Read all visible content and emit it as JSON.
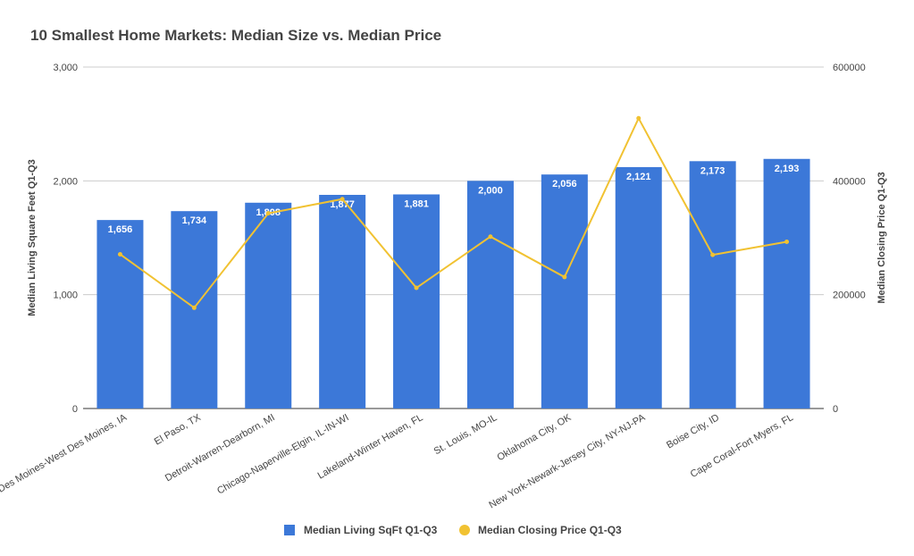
{
  "chart_data": {
    "type": "bar",
    "title": "10 Smallest Home Markets: Median Size vs. Median Price",
    "categories": [
      "Des Moines-West Des Moines, IA",
      "El Paso, TX",
      "Detroit-Warren-Dearborn, MI",
      "Chicago-Naperville-Elgin, IL-IN-WI",
      "Lakeland-Winter Haven, FL",
      "St. Louis, MO-IL",
      "Oklahoma City, OK",
      "New York-Newark-Jersey City, NY-NJ-PA",
      "Boise City, ID",
      "Cape Coral-Fort Myers, FL"
    ],
    "series": [
      {
        "name": "Median Living SqFt Q1-Q3",
        "type": "bar",
        "axis": "left",
        "color": "#3c78d8",
        "values": [
          1656,
          1734,
          1808,
          1877,
          1881,
          2000,
          2056,
          2121,
          2173,
          2193
        ],
        "labels": [
          "1,656",
          "1,734",
          "1,808",
          "1,877",
          "1,881",
          "2,000",
          "2,056",
          "2,121",
          "2,173",
          "2,193"
        ]
      },
      {
        "name": "Median Closing Price Q1-Q3",
        "type": "line",
        "axis": "right",
        "color": "#f1c232",
        "values": [
          271000,
          177000,
          343000,
          368000,
          212000,
          302000,
          231000,
          510000,
          270000,
          293000
        ]
      }
    ],
    "ylabel": "Median Living Square Feet Q1-Q3",
    "ylabel_right": "Median Closing Price Q1-Q3",
    "xlabel": "",
    "ylim": [
      0,
      3000
    ],
    "ylim_right": [
      0,
      600000
    ],
    "yticks": [
      "0",
      "1,000",
      "2,000",
      "3,000"
    ],
    "yticks_right": [
      "0",
      "200000",
      "400000",
      "600000"
    ],
    "grid": true,
    "legend": "bottom"
  }
}
